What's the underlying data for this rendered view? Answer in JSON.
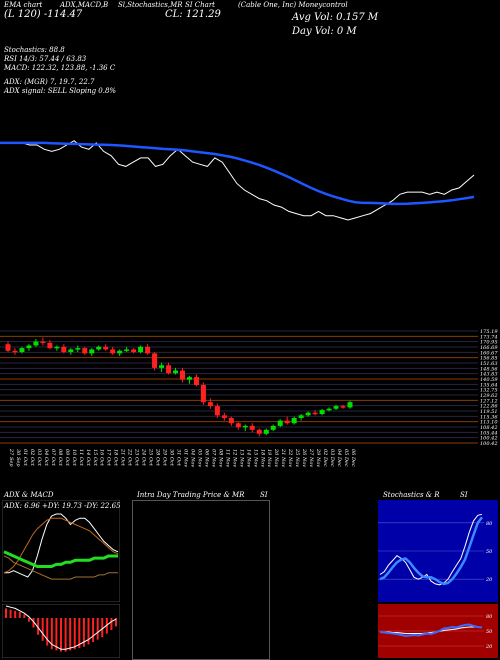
{
  "header": {
    "cols": [
      "EMA chart",
      "ADX,MACD,B",
      "Sl,Stochastics,MR",
      "SI Chart",
      "(Cable One, Inc) Moneycontrol"
    ],
    "day_price": "(L 120) -114.47",
    "close": "CL: 121.29",
    "avg_vol": "Avg Vol: 0.157 M",
    "day_vol": "Day Vol: 0   M"
  },
  "info": {
    "stoch": "Stochastics: 88.8",
    "rsi": "RSI 14/3: 57.44  / 63.83",
    "macd": "MACD: 122.32,  123.88,  -1.36  C",
    "adx": "ADX:                (MGR) 7,  19.7,  22.7",
    "adx_signal": "ADX  signal: SELL  Sloping 0.8%"
  },
  "chart_data": [
    {
      "type": "line",
      "panel": "ema",
      "series": [
        {
          "values": [
            150,
            150,
            150,
            150,
            149,
            149,
            147,
            146,
            147,
            149,
            151,
            148,
            147,
            150,
            146,
            144,
            140,
            139,
            141,
            143,
            143,
            139,
            140,
            144,
            147,
            144,
            141,
            140,
            139,
            143,
            141,
            136,
            131,
            128,
            126,
            124,
            123,
            121,
            120,
            118,
            117,
            116,
            116,
            118,
            116,
            116,
            115,
            114,
            115,
            116,
            117,
            119,
            121,
            123,
            126,
            127,
            127,
            127,
            126,
            127,
            126,
            128,
            129,
            132,
            135
          ]
        },
        {
          "values": [
            150,
            150,
            150,
            150,
            150,
            150,
            150,
            149.8,
            149.7,
            149.6,
            149.5,
            149.4,
            149.3,
            149.2,
            149.1,
            149,
            148.8,
            148.6,
            148.3,
            148,
            147.8,
            147.5,
            147.2,
            147,
            146.8,
            146.5,
            146,
            145.6,
            145.2,
            144.8,
            144.2,
            143.6,
            142.8,
            141.8,
            140.8,
            139.7,
            138.4,
            137,
            135.5,
            134,
            132.3,
            130.6,
            129,
            127.5,
            126.2,
            125,
            124,
            123,
            122.3,
            122,
            122,
            121.9,
            121.7,
            121.5,
            121.5,
            121.6,
            121.8,
            122,
            122.2,
            122.5,
            122.8,
            123.2,
            123.7,
            124.2,
            124.8
          ]
        }
      ],
      "ylim": [
        100,
        170
      ]
    },
    {
      "type": "candlestick",
      "panel": "price",
      "x": [
        "27 Sep",
        "30 Sep",
        "01 Oct",
        "02 Oct",
        "03 Oct",
        "04 Oct",
        "07 Oct",
        "08 Oct",
        "09 Oct",
        "10 Oct",
        "11 Oct",
        "14 Oct",
        "15 Oct",
        "16 Oct",
        "17 Oct",
        "18 Oct",
        "21 Oct",
        "22 Oct",
        "23 Oct",
        "24 Oct",
        "25 Oct",
        "28 Oct",
        "29 Oct",
        "30 Oct",
        "31 Oct",
        "01 Nov",
        "04 Nov",
        "05 Nov",
        "06 Nov",
        "07 Nov",
        "08 Nov",
        "11 Nov",
        "12 Nov",
        "13 Nov",
        "14 Nov",
        "15 Nov",
        "18 Nov",
        "19 Nov",
        "20 Nov",
        "21 Nov",
        "22 Nov",
        "25 Nov",
        "26 Nov",
        "27 Nov",
        "29 Nov",
        "02 Dec",
        "03 Dec",
        "04 Dec",
        "05 Dec",
        "06 Dec"
      ],
      "candles": [
        [
          170,
          172,
          164,
          165
        ],
        [
          165,
          167,
          162,
          164
        ],
        [
          164,
          168,
          163,
          167
        ],
        [
          167,
          170,
          165,
          169
        ],
        [
          169,
          174,
          168,
          172
        ],
        [
          172,
          175,
          169,
          171
        ],
        [
          171,
          173,
          166,
          167
        ],
        [
          167,
          169,
          165,
          168
        ],
        [
          168,
          170,
          163,
          164
        ],
        [
          164,
          167,
          162,
          166
        ],
        [
          166,
          169,
          164,
          167
        ],
        [
          167,
          168,
          162,
          163
        ],
        [
          163,
          167,
          161,
          166
        ],
        [
          166,
          169,
          165,
          168
        ],
        [
          168,
          170,
          165,
          166
        ],
        [
          166,
          168,
          162,
          163
        ],
        [
          163,
          166,
          161,
          165
        ],
        [
          165,
          168,
          164,
          166
        ],
        [
          166,
          167,
          163,
          164
        ],
        [
          164,
          169,
          163,
          168
        ],
        [
          168,
          170,
          162,
          163
        ],
        [
          163,
          164,
          150,
          152
        ],
        [
          152,
          156,
          149,
          154
        ],
        [
          154,
          156,
          147,
          148
        ],
        [
          148,
          152,
          147,
          150
        ],
        [
          150,
          152,
          141,
          143
        ],
        [
          143,
          146,
          140,
          145
        ],
        [
          145,
          147,
          138,
          139
        ],
        [
          139,
          141,
          124,
          126
        ],
        [
          126,
          129,
          121,
          123
        ],
        [
          123,
          125,
          114,
          116
        ],
        [
          116,
          118,
          112,
          114
        ],
        [
          114,
          115,
          108,
          110
        ],
        [
          110,
          111,
          105,
          107
        ],
        [
          107,
          109,
          104,
          108
        ],
        [
          108,
          110,
          103,
          105
        ],
        [
          105,
          106,
          100,
          102
        ],
        [
          102,
          106,
          101,
          105
        ],
        [
          105,
          109,
          104,
          108
        ],
        [
          108,
          113,
          107,
          112
        ],
        [
          112,
          115,
          109,
          110
        ],
        [
          110,
          115,
          109,
          114
        ],
        [
          114,
          117,
          112,
          116
        ],
        [
          116,
          119,
          115,
          118
        ],
        [
          118,
          120,
          116,
          117
        ],
        [
          117,
          121,
          116,
          120
        ],
        [
          120,
          122,
          119,
          121
        ],
        [
          121,
          124,
          120,
          123
        ],
        [
          123,
          124,
          121,
          122
        ],
        [
          122,
          127,
          121,
          126
        ]
      ],
      "yticks": [
        "175.19",
        "173.74",
        "170.95",
        "166.69",
        "160.67",
        "156.85",
        "151.63",
        "148.56",
        "143.83",
        "140.59",
        "135.64",
        "132.75",
        "129.62",
        "127.12",
        "122.86",
        "119.51",
        "115.36",
        "113.10",
        "108.42",
        "105.44",
        "100.42",
        "100.42"
      ],
      "ylim": [
        95,
        180
      ]
    },
    {
      "type": "line",
      "panel": "adx",
      "title": "ADX  & MACD",
      "label": "ADX: 6.96  +DY: 19.73 -DY: 22.65",
      "series": [
        {
          "values": [
            12,
            12,
            13,
            12,
            11,
            10,
            13,
            20,
            28,
            35,
            39,
            40,
            40,
            38,
            35,
            37,
            38,
            38,
            36,
            33,
            30,
            27,
            25,
            23,
            22
          ]
        },
        {
          "values": [
            12,
            13,
            15,
            18,
            22,
            26,
            30,
            33,
            35,
            37,
            38,
            38,
            38,
            37,
            36,
            35,
            34,
            33,
            32,
            30,
            28,
            26,
            24,
            22,
            21
          ]
        },
        {
          "values": [
            20,
            19,
            17,
            16,
            15,
            14,
            13,
            12,
            11,
            10,
            9,
            9,
            9,
            9,
            9,
            10,
            10,
            10,
            10,
            10,
            11,
            11,
            12,
            12,
            12
          ]
        },
        {
          "values": [
            22,
            21,
            20,
            19,
            18,
            17,
            16,
            15,
            15,
            15,
            15,
            16,
            16,
            17,
            17,
            18,
            18,
            18,
            18,
            19,
            19,
            19,
            20,
            20,
            20
          ]
        }
      ]
    },
    {
      "type": "bar",
      "panel": "macd",
      "values": [
        8,
        7,
        6,
        5,
        3,
        -3,
        -8,
        -14,
        -19,
        -23,
        -26,
        -27,
        -28,
        -28,
        -27,
        -26,
        -25,
        -24,
        -22,
        -20,
        -18,
        -16,
        -13,
        -10,
        -7
      ]
    },
    {
      "type": "line",
      "panel": "stoch",
      "title": "Stochastics & R",
      "series": [
        {
          "values": [
            25,
            28,
            35,
            40,
            45,
            42,
            38,
            30,
            22,
            20,
            22,
            25,
            18,
            15,
            14,
            16,
            20,
            28,
            35,
            42,
            55,
            70,
            82,
            88,
            89
          ]
        },
        {
          "values": [
            20,
            22,
            27,
            33,
            38,
            41,
            42,
            38,
            32,
            27,
            23,
            22,
            22,
            20,
            17,
            15,
            16,
            20,
            26,
            33,
            41,
            54,
            67,
            80,
            86
          ]
        }
      ],
      "ticks": [
        "80",
        "50",
        "20"
      ]
    },
    {
      "type": "line",
      "panel": "rsi",
      "series": [
        {
          "values": [
            48,
            47,
            46,
            45,
            44,
            42,
            40,
            41,
            42,
            41,
            43,
            45,
            44,
            47,
            50,
            55,
            56,
            58,
            57,
            60,
            62,
            63,
            60,
            58,
            57
          ]
        },
        {
          "values": [
            48,
            48,
            48,
            47,
            47,
            46,
            45,
            45,
            45,
            45,
            45,
            46,
            47,
            48,
            49,
            51,
            52,
            53,
            54,
            56,
            57,
            58,
            58,
            58,
            58
          ]
        }
      ],
      "ticks": [
        "80",
        "50",
        "20"
      ]
    }
  ],
  "panels": {
    "intraday_title": "Intra  Day Trading Price  & MR",
    "si_label": "SI",
    "si_label_right": "SI"
  }
}
